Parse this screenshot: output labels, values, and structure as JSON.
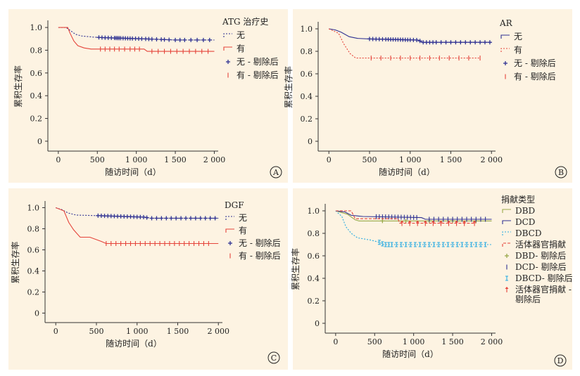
{
  "chart_data": [
    {
      "type": "line",
      "panel_label": "A",
      "xlabel": "随访时间（d）",
      "ylabel": "累积生存率",
      "x_ticks": [
        "0",
        "500",
        "1 000",
        "1 500",
        "2 000"
      ],
      "x_tick_values": [
        0,
        500,
        1000,
        1500,
        2000
      ],
      "y_ticks": [
        "0",
        "0.2",
        "0.4",
        "0.6",
        "0.8",
        "1.0"
      ],
      "y_tick_values": [
        0,
        0.2,
        0.4,
        0.6,
        0.8,
        1.0
      ],
      "xlim": [
        -80,
        2050
      ],
      "ylim": [
        -0.05,
        1.05
      ],
      "legend_title": "ATG 治疗史",
      "legend": [
        {
          "label": "无",
          "color": "#2e3192",
          "kind": "line",
          "dash": "2,2"
        },
        {
          "label": "有",
          "color": "#e5443b",
          "kind": "line",
          "dash": ""
        },
        {
          "label": "无 - 剔除后",
          "color": "#2e3192",
          "kind": "plus"
        },
        {
          "label": "有 - 剔除后",
          "color": "#e5443b",
          "kind": "tick"
        }
      ],
      "series": [
        {
          "name": "无",
          "color": "#2e3192",
          "dash": "2,2",
          "points": [
            [
              0,
              1.0
            ],
            [
              100,
              1.0
            ],
            [
              160,
              0.97
            ],
            [
              220,
              0.94
            ],
            [
              300,
              0.925
            ],
            [
              450,
              0.915
            ],
            [
              600,
              0.91
            ],
            [
              1100,
              0.9
            ],
            [
              1500,
              0.89
            ],
            [
              2000,
              0.89
            ]
          ],
          "censor": [
            520,
            560,
            600,
            640,
            680,
            720,
            740,
            760,
            780,
            800,
            830,
            860,
            890,
            920,
            950,
            990,
            1030,
            1070,
            1120,
            1160,
            1200,
            1260,
            1320,
            1360,
            1420,
            1500,
            1560,
            1620,
            1700,
            1780,
            1860,
            1940
          ]
        },
        {
          "name": "有",
          "color": "#e5443b",
          "dash": "",
          "points": [
            [
              0,
              1.0
            ],
            [
              120,
              1.0
            ],
            [
              150,
              0.95
            ],
            [
              200,
              0.88
            ],
            [
              250,
              0.84
            ],
            [
              330,
              0.82
            ],
            [
              420,
              0.81
            ],
            [
              1100,
              0.81
            ],
            [
              1140,
              0.79
            ],
            [
              2000,
              0.79
            ]
          ],
          "censor": [
            540,
            600,
            660,
            720,
            780,
            850,
            920,
            980,
            1040,
            1200,
            1280,
            1360,
            1440,
            1520,
            1600,
            1680,
            1760,
            1840,
            1920
          ]
        }
      ]
    },
    {
      "type": "line",
      "panel_label": "B",
      "xlabel": "随访时间（d）",
      "ylabel": "累积生存率",
      "x_ticks": [
        "0",
        "500",
        "1 000",
        "1 500",
        "2 000"
      ],
      "x_tick_values": [
        0,
        500,
        1000,
        1500,
        2000
      ],
      "y_ticks": [
        "0",
        "0.2",
        "0.4",
        "0.6",
        "0.8",
        "1.0"
      ],
      "y_tick_values": [
        0,
        0.2,
        0.4,
        0.6,
        0.8,
        1.0
      ],
      "xlim": [
        -80,
        2050
      ],
      "ylim": [
        -0.05,
        1.05
      ],
      "legend_title": "AR",
      "legend": [
        {
          "label": "无",
          "color": "#2e3192",
          "kind": "line",
          "dash": ""
        },
        {
          "label": "有",
          "color": "#e5443b",
          "kind": "line",
          "dash": "2,2"
        },
        {
          "label": "无 - 剔除后",
          "color": "#2e3192",
          "kind": "plus"
        },
        {
          "label": "有 - 剔除后",
          "color": "#e5443b",
          "kind": "tick"
        }
      ],
      "series": [
        {
          "name": "无",
          "color": "#2e3192",
          "dash": "",
          "points": [
            [
              0,
              1.0
            ],
            [
              80,
              0.99
            ],
            [
              150,
              0.97
            ],
            [
              250,
              0.93
            ],
            [
              350,
              0.915
            ],
            [
              500,
              0.91
            ],
            [
              1100,
              0.9
            ],
            [
              1150,
              0.88
            ],
            [
              2000,
              0.88
            ]
          ],
          "censor": [
            500,
            540,
            580,
            620,
            660,
            700,
            730,
            760,
            790,
            820,
            850,
            880,
            910,
            940,
            970,
            1000,
            1040,
            1080,
            1120,
            1160,
            1200,
            1240,
            1280,
            1320,
            1380,
            1440,
            1500,
            1560,
            1620,
            1680,
            1740,
            1800,
            1860,
            1920,
            1980
          ]
        },
        {
          "name": "有",
          "color": "#e5443b",
          "dash": "2,2",
          "points": [
            [
              0,
              1.0
            ],
            [
              120,
              0.96
            ],
            [
              180,
              0.87
            ],
            [
              260,
              0.78
            ],
            [
              330,
              0.74
            ],
            [
              1860,
              0.74
            ]
          ],
          "censor": [
            520,
            640,
            760,
            880,
            1000,
            1120,
            1240,
            1360,
            1480,
            1600,
            1720,
            1860
          ]
        }
      ]
    },
    {
      "type": "line",
      "panel_label": "C",
      "xlabel": "随访时间（d）",
      "ylabel": "累积生存率",
      "x_ticks": [
        "0",
        "500",
        "1 000",
        "1 500",
        "2 000"
      ],
      "x_tick_values": [
        0,
        500,
        1000,
        1500,
        2000
      ],
      "y_ticks": [
        "0",
        "0.2",
        "0.4",
        "0.6",
        "0.8",
        "1.0"
      ],
      "y_tick_values": [
        0,
        0.2,
        0.4,
        0.6,
        0.8,
        1.0
      ],
      "xlim": [
        -80,
        2050
      ],
      "ylim": [
        -0.05,
        1.05
      ],
      "legend_title": "DGF",
      "legend": [
        {
          "label": "无",
          "color": "#2e3192",
          "kind": "line",
          "dash": "2,2"
        },
        {
          "label": "有",
          "color": "#e5443b",
          "kind": "line",
          "dash": ""
        },
        {
          "label": "无 - 剔除后",
          "color": "#2e3192",
          "kind": "plus"
        },
        {
          "label": "有 - 剔除后",
          "color": "#e5443b",
          "kind": "tick"
        }
      ],
      "series": [
        {
          "name": "无",
          "color": "#2e3192",
          "dash": "2,2",
          "points": [
            [
              0,
              1.0
            ],
            [
              80,
              0.98
            ],
            [
              150,
              0.95
            ],
            [
              250,
              0.93
            ],
            [
              500,
              0.925
            ],
            [
              1100,
              0.91
            ],
            [
              1150,
              0.9
            ],
            [
              2000,
              0.9
            ]
          ],
          "censor": [
            520,
            560,
            600,
            640,
            680,
            720,
            760,
            800,
            840,
            880,
            920,
            960,
            1000,
            1040,
            1080,
            1120,
            1180,
            1240,
            1300,
            1360,
            1420,
            1480,
            1540,
            1600,
            1660,
            1720,
            1780,
            1840,
            1900,
            1960
          ]
        },
        {
          "name": "有",
          "color": "#e5443b",
          "dash": "",
          "points": [
            [
              0,
              1.0
            ],
            [
              100,
              0.97
            ],
            [
              160,
              0.86
            ],
            [
              220,
              0.79
            ],
            [
              300,
              0.72
            ],
            [
              420,
              0.72
            ],
            [
              560,
              0.68
            ],
            [
              620,
              0.66
            ],
            [
              2000,
              0.66
            ]
          ],
          "censor": [
            620,
            680,
            740,
            800,
            860,
            920,
            980,
            1040,
            1100,
            1160,
            1220,
            1280,
            1340,
            1400,
            1460,
            1520,
            1580,
            1640,
            1700,
            1760,
            1820,
            1880
          ]
        }
      ]
    },
    {
      "type": "line",
      "panel_label": "D",
      "xlabel": "随访时间（d）",
      "ylabel": "累积生存率",
      "x_ticks": [
        "0",
        "500",
        "1 000",
        "1 500",
        "2 000"
      ],
      "x_tick_values": [
        0,
        500,
        1000,
        1500,
        2000
      ],
      "y_ticks": [
        "0",
        "0.2",
        "0.4",
        "0.6",
        "0.8",
        "1.0"
      ],
      "y_tick_values": [
        0,
        0.2,
        0.4,
        0.6,
        0.8,
        1.0
      ],
      "xlim": [
        -80,
        2050
      ],
      "ylim": [
        -0.05,
        1.05
      ],
      "legend_title": "捐献类型",
      "legend": [
        {
          "label": "DBD",
          "color": "#9aa84a",
          "kind": "line",
          "dash": ""
        },
        {
          "label": "DCD",
          "color": "#2e3192",
          "kind": "line",
          "dash": ""
        },
        {
          "label": "DBCD",
          "color": "#29abe2",
          "kind": "line",
          "dash": "2,2"
        },
        {
          "label": "活体器官捐献",
          "color": "#e5443b",
          "kind": "line",
          "dash": "4,2"
        },
        {
          "label": "DBD- 剔除后",
          "color": "#9aa84a",
          "kind": "plus"
        },
        {
          "label": "DCD- 剔除后",
          "color": "#2e3192",
          "kind": "tick"
        },
        {
          "label": "DBCD- 剔除后",
          "color": "#29abe2",
          "kind": "ibeam"
        },
        {
          "label": "活体器官捐献 - 剔除后",
          "color": "#e5443b",
          "kind": "arrow"
        }
      ],
      "series": [
        {
          "name": "DBD",
          "color": "#9aa84a",
          "dash": "",
          "points": [
            [
              0,
              1.0
            ],
            [
              150,
              0.97
            ],
            [
              250,
              0.92
            ],
            [
              300,
              0.91
            ],
            [
              2000,
              0.91
            ]
          ],
          "censor": [
            600,
            900,
            1200,
            1500,
            1800
          ]
        },
        {
          "name": "DCD",
          "color": "#2e3192",
          "dash": "",
          "points": [
            [
              0,
              1.0
            ],
            [
              120,
              0.99
            ],
            [
              200,
              0.96
            ],
            [
              350,
              0.95
            ],
            [
              1100,
              0.94
            ],
            [
              1150,
              0.925
            ],
            [
              2000,
              0.925
            ]
          ],
          "censor": [
            520,
            560,
            600,
            640,
            680,
            720,
            760,
            800,
            840,
            880,
            920,
            960,
            1000,
            1040,
            1200,
            1260,
            1320,
            1380,
            1440,
            1500,
            1560,
            1620,
            1680,
            1740,
            1800,
            1860,
            1920
          ]
        },
        {
          "name": "DBCD",
          "color": "#29abe2",
          "dash": "2,2",
          "points": [
            [
              0,
              1.0
            ],
            [
              80,
              0.95
            ],
            [
              130,
              0.86
            ],
            [
              200,
              0.8
            ],
            [
              280,
              0.76
            ],
            [
              450,
              0.74
            ],
            [
              560,
              0.72
            ],
            [
              620,
              0.7
            ],
            [
              2000,
              0.7
            ]
          ],
          "censor": [
            560,
            600,
            640,
            680,
            720,
            780,
            840,
            900,
            960,
            1020,
            1080,
            1140,
            1200,
            1260,
            1320,
            1380,
            1440,
            1500,
            1560,
            1620,
            1680,
            1740,
            1800,
            1860,
            1920
          ]
        },
        {
          "name": "活体器官捐献",
          "color": "#e5443b",
          "dash": "4,2",
          "points": [
            [
              0,
              1.0
            ],
            [
              200,
              1.0
            ],
            [
              250,
              0.93
            ],
            [
              800,
              0.93
            ],
            [
              820,
              0.89
            ],
            [
              1800,
              0.89
            ]
          ],
          "censor": [
            850,
            950,
            1050,
            1150,
            1250,
            1350,
            1450,
            1550,
            1650,
            1780
          ]
        }
      ]
    }
  ]
}
